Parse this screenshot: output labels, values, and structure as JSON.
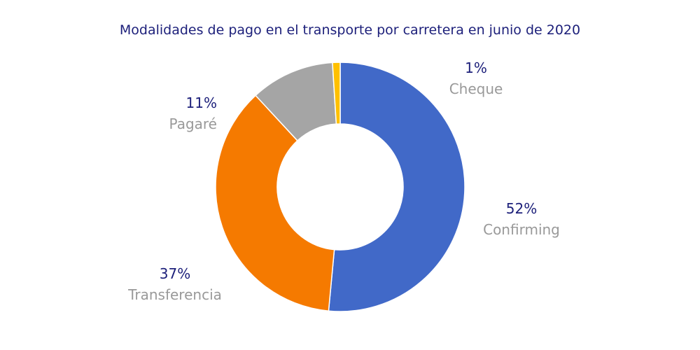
{
  "chart_data": {
    "type": "pie",
    "variant": "donut",
    "title": "Modalidades de pago en el transporte por carretera en junio de 2020",
    "slices": [
      {
        "label": "Confirming",
        "value": 52,
        "display": "52%",
        "color": "#4169c8"
      },
      {
        "label": "Transferencia",
        "value": 37,
        "display": "37%",
        "color": "#f57a00"
      },
      {
        "label": "Pagaré",
        "value": 11,
        "display": "11%",
        "color": "#a5a5a5"
      },
      {
        "label": "Cheque",
        "value": 1,
        "display": "1%",
        "color": "#ffc000"
      }
    ],
    "legend": "none"
  }
}
